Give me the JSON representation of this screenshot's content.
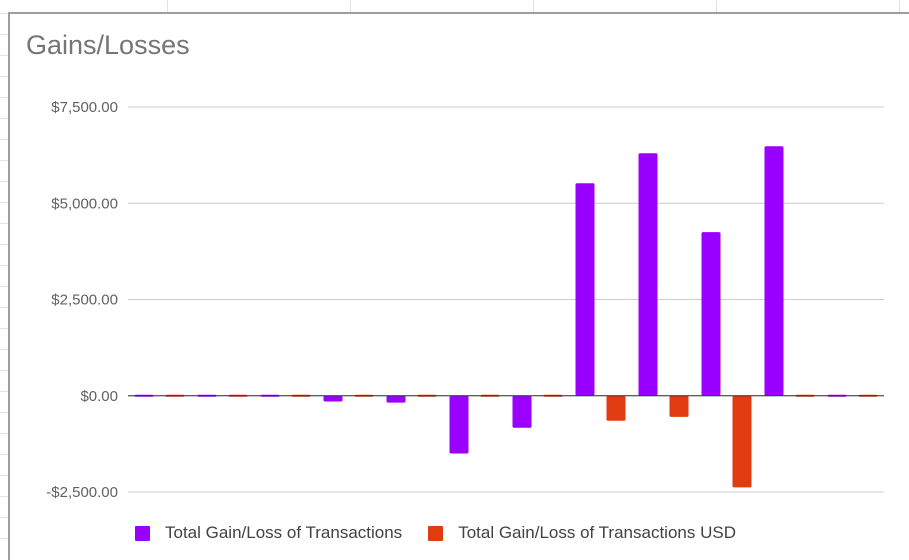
{
  "chart_data": {
    "type": "bar",
    "title": "Gains/Losses",
    "ylim": [
      -2500,
      7500
    ],
    "yticks": [
      7500,
      5000,
      2500,
      0,
      -2500
    ],
    "ytick_labels": [
      "$7,500.00",
      "$5,000.00",
      "$2,500.00",
      "$0.00",
      "-$2,500.00"
    ],
    "categories": [
      "",
      "",
      "",
      "",
      "",
      "",
      "",
      "",
      "",
      "",
      "",
      ""
    ],
    "grid": true,
    "legend_position": "bottom",
    "series": [
      {
        "name": "Total Gain/Loss of Transactions",
        "color": "#9900ff",
        "values": [
          0,
          0,
          0,
          -150,
          -180,
          -1500,
          -830,
          5520,
          6300,
          4250,
          6480,
          0
        ]
      },
      {
        "name": "Total Gain/Loss of Transactions USD",
        "color": "#e03c12",
        "values": [
          0,
          0,
          0,
          0,
          0,
          0,
          0,
          -650,
          -550,
          -2380,
          0,
          0
        ]
      }
    ]
  }
}
